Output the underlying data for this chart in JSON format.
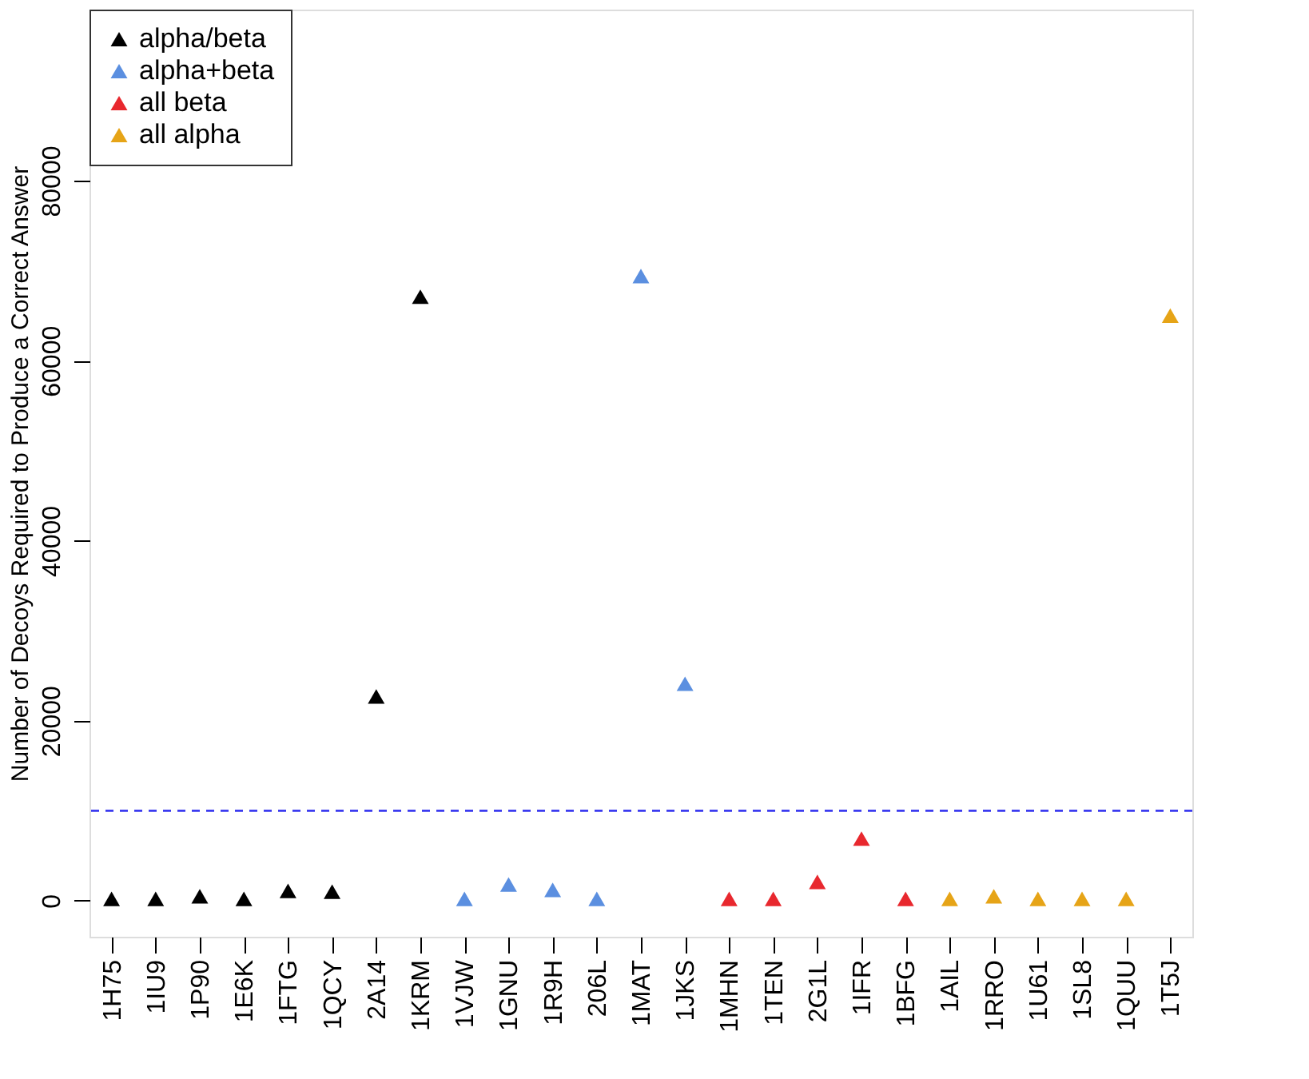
{
  "chart_data": {
    "type": "scatter",
    "ylabel": "Number of Decoys Required to Produce a Correct Answer",
    "categories": [
      "1H75",
      "1IU9",
      "1P90",
      "1E6K",
      "1FTG",
      "1QCY",
      "2A14",
      "1KRM",
      "1VJW",
      "1GNU",
      "1R9H",
      "206L",
      "1MAT",
      "1JKS",
      "1MHN",
      "1TEN",
      "2G1L",
      "1IFR",
      "1BFG",
      "1AIL",
      "1RRO",
      "1U61",
      "1SL8",
      "1QUU",
      "1T5J"
    ],
    "series": [
      {
        "name": "alpha/beta",
        "color": "#000000",
        "x": [
          "1H75",
          "1IU9",
          "1P90",
          "1E6K",
          "1FTG",
          "1QCY",
          "2A14",
          "1KRM"
        ],
        "values": [
          200,
          200,
          500,
          200,
          1100,
          1000,
          22700,
          67100
        ]
      },
      {
        "name": "alpha+beta",
        "color": "#5b8fe0",
        "x": [
          "1VJW",
          "1GNU",
          "1R9H",
          "206L",
          "1MAT",
          "1JKS"
        ],
        "values": [
          200,
          1800,
          1200,
          200,
          69400,
          24100
        ]
      },
      {
        "name": "all beta",
        "color": "#e8282e",
        "x": [
          "1MHN",
          "1TEN",
          "2G1L",
          "1IFR",
          "1BFG"
        ],
        "values": [
          200,
          200,
          2100,
          6900,
          200
        ]
      },
      {
        "name": "all alpha",
        "color": "#e6a417",
        "x": [
          "1AIL",
          "1RRO",
          "1U61",
          "1SL8",
          "1QUU",
          "1T5J"
        ],
        "values": [
          200,
          500,
          200,
          200,
          200,
          65000
        ]
      }
    ],
    "ylim": [
      -4000,
      99000
    ],
    "yticks": [
      0,
      20000,
      40000,
      60000,
      80000
    ],
    "ref_lines": [
      {
        "axis": "y",
        "value": 10000,
        "color": "#3b3bf0",
        "line_style": "dashed"
      }
    ],
    "marker": "triangle",
    "legend": "top left",
    "grid": false
  }
}
